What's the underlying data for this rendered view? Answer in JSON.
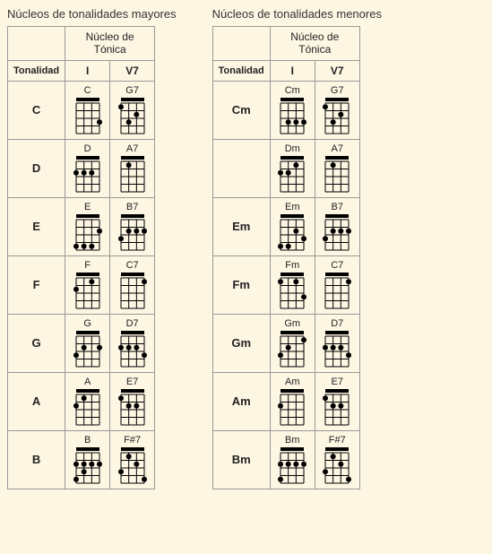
{
  "colors": {
    "bg": "#fdf6e3",
    "border": "#999999",
    "line": "#000000",
    "dot": "#000000",
    "text": "#222222"
  },
  "diagram": {
    "strings": 4,
    "frets": 4,
    "width": 34,
    "height": 42,
    "nut_h": 4,
    "dot_r": 3
  },
  "tables": [
    {
      "title": "Núcleos de tonalidades mayores",
      "header_nucleo": "Núcleo de Tónica",
      "header_tonalidad": "Tonalidad",
      "degrees": [
        "I",
        "V7"
      ],
      "rows": [
        {
          "key": "C",
          "chords": [
            {
              "label": "C",
              "dots": [
                [
                  4,
                  3
                ]
              ]
            },
            {
              "label": "G7",
              "dots": [
                [
                  1,
                  1
                ],
                [
                  3,
                  2
                ],
                [
                  2,
                  3
                ]
              ]
            }
          ]
        },
        {
          "key": "D",
          "chords": [
            {
              "label": "D",
              "dots": [
                [
                  1,
                  2
                ],
                [
                  2,
                  2
                ],
                [
                  3,
                  2
                ]
              ],
              "open": [
                4
              ]
            },
            {
              "label": "A7",
              "dots": [
                [
                  2,
                  1
                ]
              ]
            }
          ]
        },
        {
          "key": "E",
          "chords": [
            {
              "label": "E",
              "dots": [
                [
                  4,
                  2
                ],
                [
                  1,
                  4
                ],
                [
                  2,
                  4
                ],
                [
                  3,
                  4
                ]
              ]
            },
            {
              "label": "B7",
              "dots": [
                [
                  2,
                  2
                ],
                [
                  3,
                  2
                ],
                [
                  4,
                  2
                ],
                [
                  1,
                  3
                ]
              ]
            }
          ]
        },
        {
          "key": "F",
          "chords": [
            {
              "label": "F",
              "dots": [
                [
                  3,
                  1
                ],
                [
                  1,
                  2
                ]
              ]
            },
            {
              "label": "C7",
              "dots": [
                [
                  4,
                  1
                ]
              ]
            }
          ]
        },
        {
          "key": "G",
          "chords": [
            {
              "label": "G",
              "dots": [
                [
                  2,
                  2
                ],
                [
                  4,
                  2
                ],
                [
                  1,
                  3
                ]
              ]
            },
            {
              "label": "D7",
              "dots": [
                [
                  1,
                  2
                ],
                [
                  2,
                  2
                ],
                [
                  3,
                  2
                ],
                [
                  4,
                  3
                ]
              ]
            }
          ]
        },
        {
          "key": "A",
          "chords": [
            {
              "label": "A",
              "dots": [
                [
                  2,
                  1
                ],
                [
                  1,
                  2
                ]
              ]
            },
            {
              "label": "E7",
              "dots": [
                [
                  1,
                  1
                ],
                [
                  3,
                  2
                ],
                [
                  2,
                  2
                ]
              ]
            }
          ]
        },
        {
          "key": "B",
          "chords": [
            {
              "label": "B",
              "dots": [
                [
                  1,
                  2
                ],
                [
                  2,
                  2
                ],
                [
                  3,
                  2
                ],
                [
                  4,
                  2
                ],
                [
                  2,
                  3
                ],
                [
                  1,
                  4
                ]
              ]
            },
            {
              "label": "F#7",
              "dots": [
                [
                  2,
                  1
                ],
                [
                  3,
                  2
                ],
                [
                  1,
                  3
                ],
                [
                  4,
                  4
                ]
              ]
            }
          ]
        }
      ]
    },
    {
      "title": "Núcleos de tonalidades menores",
      "header_nucleo": "Núcleo de Tónica",
      "header_tonalidad": "Tonalidad",
      "degrees": [
        "I",
        "V7"
      ],
      "rows": [
        {
          "key": "Cm",
          "chords": [
            {
              "label": "Cm",
              "dots": [
                [
                  2,
                  3
                ],
                [
                  3,
                  3
                ],
                [
                  4,
                  3
                ]
              ]
            },
            {
              "label": "G7",
              "dots": [
                [
                  1,
                  1
                ],
                [
                  3,
                  2
                ],
                [
                  2,
                  3
                ]
              ]
            }
          ]
        },
        {
          "key": " ",
          "chords": [
            {
              "label": "Dm",
              "dots": [
                [
                  3,
                  1
                ],
                [
                  1,
                  2
                ],
                [
                  2,
                  2
                ]
              ]
            },
            {
              "label": "A7",
              "dots": [
                [
                  2,
                  1
                ]
              ]
            }
          ]
        },
        {
          "key": "Em",
          "chords": [
            {
              "label": "Em",
              "dots": [
                [
                  3,
                  2
                ],
                [
                  4,
                  3
                ],
                [
                  1,
                  4
                ],
                [
                  2,
                  4
                ]
              ]
            },
            {
              "label": "B7",
              "dots": [
                [
                  2,
                  2
                ],
                [
                  3,
                  2
                ],
                [
                  4,
                  2
                ],
                [
                  1,
                  3
                ]
              ]
            }
          ]
        },
        {
          "key": "Fm",
          "chords": [
            {
              "label": "Fm",
              "dots": [
                [
                  1,
                  1
                ],
                [
                  3,
                  1
                ],
                [
                  4,
                  3
                ]
              ]
            },
            {
              "label": "C7",
              "dots": [
                [
                  4,
                  1
                ]
              ]
            }
          ]
        },
        {
          "key": "Gm",
          "chords": [
            {
              "label": "Gm",
              "dots": [
                [
                  4,
                  1
                ],
                [
                  2,
                  2
                ],
                [
                  1,
                  3
                ]
              ]
            },
            {
              "label": "D7",
              "dots": [
                [
                  1,
                  2
                ],
                [
                  2,
                  2
                ],
                [
                  3,
                  2
                ],
                [
                  4,
                  3
                ]
              ]
            }
          ]
        },
        {
          "key": "Am",
          "chords": [
            {
              "label": "Am",
              "dots": [
                [
                  1,
                  2
                ]
              ]
            },
            {
              "label": "E7",
              "dots": [
                [
                  1,
                  1
                ],
                [
                  3,
                  2
                ],
                [
                  2,
                  2
                ]
              ]
            }
          ]
        },
        {
          "key": "Bm",
          "chords": [
            {
              "label": "Bm",
              "dots": [
                [
                  1,
                  2
                ],
                [
                  2,
                  2
                ],
                [
                  3,
                  2
                ],
                [
                  4,
                  2
                ],
                [
                  1,
                  4
                ]
              ]
            },
            {
              "label": "F#7",
              "dots": [
                [
                  2,
                  1
                ],
                [
                  3,
                  2
                ],
                [
                  1,
                  3
                ],
                [
                  4,
                  4
                ]
              ]
            }
          ]
        }
      ]
    }
  ]
}
